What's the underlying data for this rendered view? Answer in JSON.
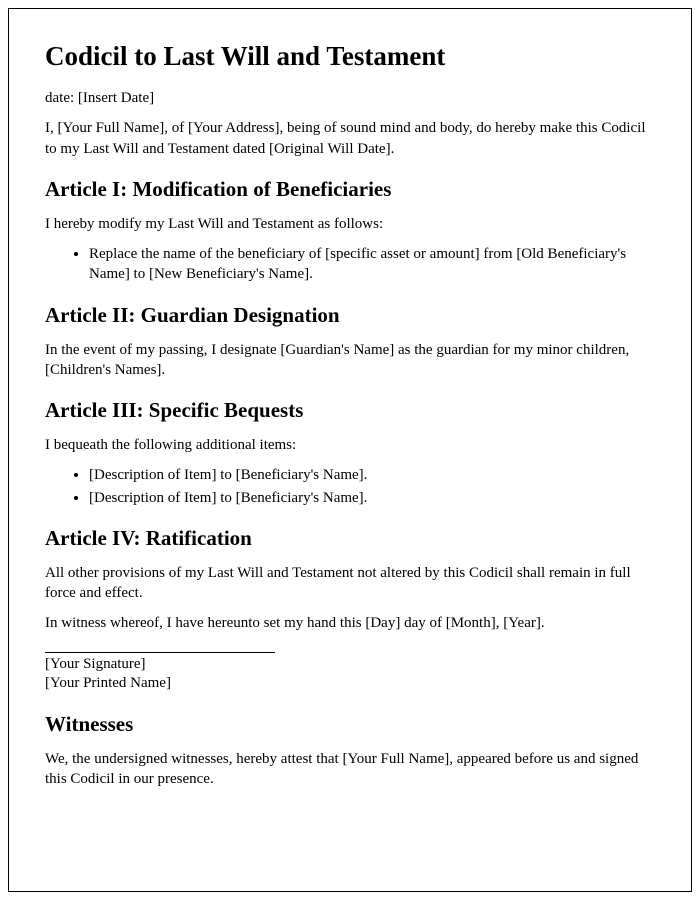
{
  "title": "Codicil to Last Will and Testament",
  "date_line": "date: [Insert Date]",
  "intro": "I, [Your Full Name], of [Your Address], being of sound mind and body, do hereby make this Codicil to my Last Will and Testament dated [Original Will Date].",
  "article1": {
    "heading": "Article I: Modification of Beneficiaries",
    "para": "I hereby modify my Last Will and Testament as follows:",
    "items": [
      "Replace the name of the beneficiary of [specific asset or amount] from [Old Beneficiary's Name] to [New Beneficiary's Name]."
    ]
  },
  "article2": {
    "heading": "Article II: Guardian Designation",
    "para": "In the event of my passing, I designate [Guardian's Name] as the guardian for my minor children, [Children's Names]."
  },
  "article3": {
    "heading": "Article III: Specific Bequests",
    "para": "I bequeath the following additional items:",
    "items": [
      "[Description of Item] to [Beneficiary's Name].",
      "[Description of Item] to [Beneficiary's Name]."
    ]
  },
  "article4": {
    "heading": "Article IV: Ratification",
    "para1": "All other provisions of my Last Will and Testament not altered by this Codicil shall remain in full force and effect.",
    "para2": "In witness whereof, I have hereunto set my hand this [Day] day of [Month], [Year]."
  },
  "signature": {
    "line1": "[Your Signature]",
    "line2": "[Your Printed Name]"
  },
  "witnesses": {
    "heading": "Witnesses",
    "para": "We, the undersigned witnesses, hereby attest that [Your Full Name], appeared before us and signed this Codicil in our presence."
  }
}
